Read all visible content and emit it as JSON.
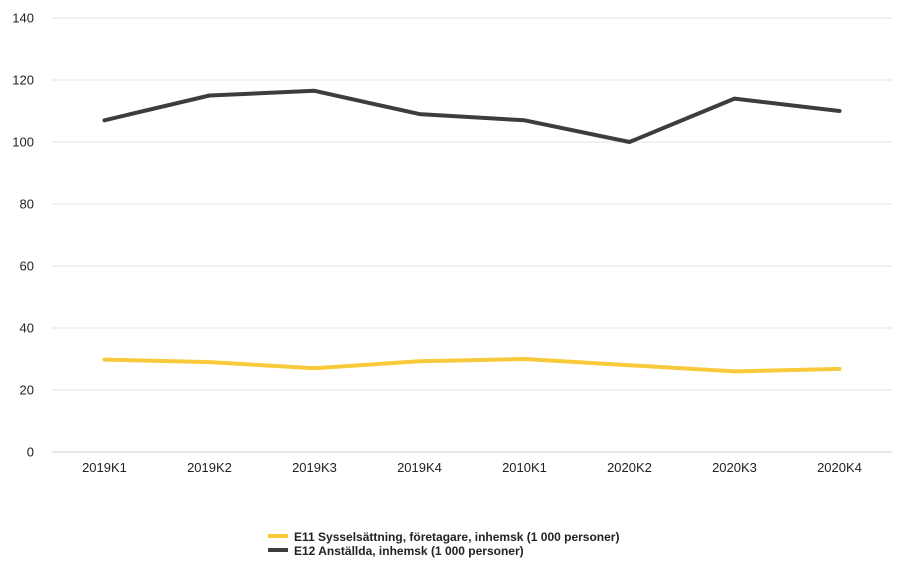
{
  "chart_data": {
    "type": "line",
    "title": "",
    "xlabel": "",
    "ylabel": "",
    "categories": [
      "2019K1",
      "2019K2",
      "2019K3",
      "2019K4",
      "2010K1",
      "2020K2",
      "2020K3",
      "2020K4"
    ],
    "ylim": [
      0,
      140
    ],
    "yticks": [
      0,
      20,
      40,
      60,
      80,
      100,
      120,
      140
    ],
    "grid": true,
    "legend_position": "bottom",
    "series": [
      {
        "name": "E11 Sysselsättning, företagare, inhemsk (1 000 personer)",
        "color": "#f7c93b",
        "values": [
          29.8,
          29.0,
          27.0,
          29.3,
          30.0,
          28.0,
          26.0,
          26.8
        ]
      },
      {
        "name": "E12 Anställda, inhemsk (1 000 personer)",
        "color": "#3d3d3d",
        "values": [
          107.0,
          115.0,
          116.5,
          109.0,
          107.0,
          100.0,
          114.0,
          110.0
        ]
      }
    ]
  }
}
